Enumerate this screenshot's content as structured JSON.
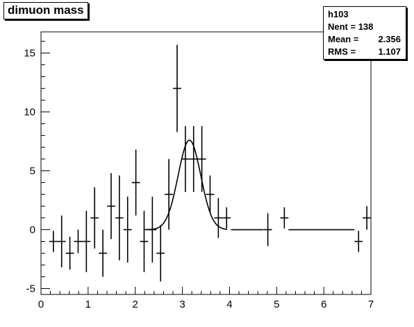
{
  "chart_data": {
    "type": "scatter",
    "title": "dimuon mass",
    "xlim": [
      0,
      7
    ],
    "ylim": [
      -5.5,
      16.8
    ],
    "x_ticks": [
      0,
      1,
      2,
      3,
      4,
      5,
      6,
      7
    ],
    "y_ticks": [
      -5,
      0,
      5,
      10,
      15
    ],
    "stats": {
      "name": "h103",
      "rows": [
        {
          "label": "Nent = 138",
          "value": ""
        },
        {
          "label": "Mean  =",
          "value": "2.356"
        },
        {
          "label": "RMS   =",
          "value": "1.107"
        }
      ]
    },
    "bin_width": 0.175,
    "points": [
      {
        "x": 0.263,
        "y": -1,
        "err": 0.9
      },
      {
        "x": 0.438,
        "y": -1,
        "err": 2.2
      },
      {
        "x": 0.613,
        "y": -2,
        "err": 1.4
      },
      {
        "x": 0.788,
        "y": -1,
        "err": 1.0
      },
      {
        "x": 0.963,
        "y": -1,
        "err": 2.6
      },
      {
        "x": 1.138,
        "y": 1,
        "err": 2.6
      },
      {
        "x": 1.313,
        "y": -2,
        "err": 2.0
      },
      {
        "x": 1.488,
        "y": 2,
        "err": 2.8
      },
      {
        "x": 1.663,
        "y": 1,
        "err": 3.6
      },
      {
        "x": 1.838,
        "y": 0,
        "err": 2.8
      },
      {
        "x": 2.013,
        "y": 4,
        "err": 2.8
      },
      {
        "x": 2.188,
        "y": -1,
        "err": 2.6
      },
      {
        "x": 2.363,
        "y": 0,
        "err": 2.8
      },
      {
        "x": 2.538,
        "y": -2,
        "err": 2.4
      },
      {
        "x": 2.713,
        "y": 3,
        "err": 3.0
      },
      {
        "x": 2.888,
        "y": 12,
        "err": 3.7
      },
      {
        "x": 3.063,
        "y": 6,
        "err": 2.8
      },
      {
        "x": 3.238,
        "y": 6,
        "err": 2.8
      },
      {
        "x": 3.413,
        "y": 6,
        "err": 2.8
      },
      {
        "x": 3.588,
        "y": 3,
        "err": 1.6
      },
      {
        "x": 3.763,
        "y": 1,
        "err": 1.7
      },
      {
        "x": 3.938,
        "y": 1,
        "err": 0.9
      },
      {
        "x": 4.813,
        "y": 0,
        "err": 1.4
      },
      {
        "x": 5.163,
        "y": 1,
        "err": 0.9
      },
      {
        "x": 6.738,
        "y": -1,
        "err": 0.9
      },
      {
        "x": 6.913,
        "y": 1,
        "err": 1.0
      }
    ],
    "flat_segments": [
      {
        "x_start": 4.03,
        "x_end": 4.72,
        "y": 0
      },
      {
        "x_start": 5.25,
        "x_end": 6.65,
        "y": 0
      }
    ],
    "fit": {
      "type": "gaussian",
      "mean": 3.15,
      "sigma": 0.24,
      "amplitude": 7.6,
      "x_start": 2.2,
      "x_end": 3.95
    }
  }
}
